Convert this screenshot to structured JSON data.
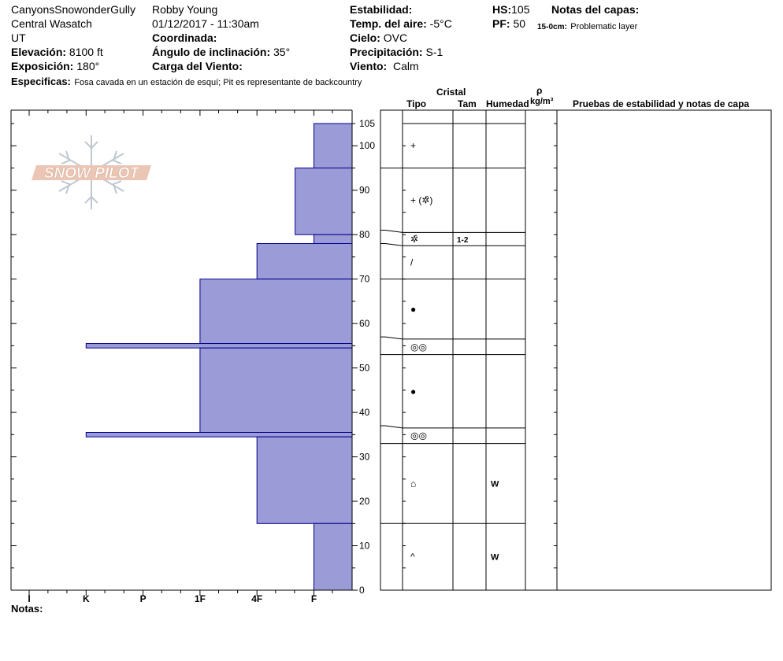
{
  "header": {
    "site": "CanyonsSnowonderGully",
    "range": "Central Wasatch",
    "state": "UT",
    "elevation_label": "Elevación:",
    "elevation_value": "8100 ft",
    "aspect_label": "Exposición:",
    "aspect_value": "180°",
    "specifics_label": "Especificas:",
    "specifics_value": "Fosa cavada en un estación de esquí; Pit es representante de backcountry",
    "observer": "Robby Young",
    "datetime": "01/12/2017 - 11:30am",
    "coord_label": "Coordinada:",
    "slope_label": "Ángulo de inclinación:",
    "slope_value": "35°",
    "wind_load_label": "Carga del Viento:",
    "stability_label": "Estabilidad:",
    "air_temp_label": "Temp. del aire:",
    "air_temp_value": "-5°C",
    "sky_label": "Cielo:",
    "sky_value": "OVC",
    "precip_label": "Precipitación:",
    "precip_value": "S-1",
    "wind_label": "Viento:",
    "wind_value": "Calm",
    "hs_label": "HS:",
    "hs_value": "105",
    "pf_label": "PF:",
    "pf_value": "50",
    "layer_notes_label": "Notas del capas:",
    "layer_note_range": "15-0cm:",
    "layer_note_text": "Problematic layer"
  },
  "logo_text": "SNOW PILOT",
  "table_headers": {
    "cristal": "Cristal",
    "tipo": "Tipo",
    "tam": "Tam",
    "humedad": "Humedad",
    "rho": "ρ",
    "density_unit": "kg/m³",
    "tests": "Pruebas de estabilidad y notas de capa"
  },
  "notes_label": "Notas:",
  "chart_data": {
    "type": "bar",
    "orientation": "horizontal",
    "xlabel": "",
    "ylabel": "",
    "hardness_scale": [
      "I",
      "K",
      "P",
      "1F",
      "4F",
      "F"
    ],
    "hardness_scale_levels": [
      1,
      2,
      3,
      4,
      5,
      6
    ],
    "hardness_origin_level": 6.67,
    "ylim": [
      0,
      105
    ],
    "y_ticks": [
      0,
      10,
      20,
      30,
      40,
      50,
      60,
      70,
      80,
      90,
      100,
      105
    ],
    "y_minor_step": 5,
    "hardness_layers": [
      {
        "top": 105,
        "bottom": 95,
        "hardness": "F",
        "level": 6
      },
      {
        "top": 95,
        "bottom": 80,
        "hardness": "F+",
        "level": 5.67
      },
      {
        "top": 80,
        "bottom": 78,
        "hardness": "F",
        "level": 6
      },
      {
        "top": 78,
        "bottom": 70,
        "hardness": "4F",
        "level": 5
      },
      {
        "top": 70,
        "bottom": 55.5,
        "hardness": "1F",
        "level": 4
      },
      {
        "top": 55.5,
        "bottom": 54.5,
        "hardness": "K",
        "level": 2
      },
      {
        "top": 54.5,
        "bottom": 35.5,
        "hardness": "1F",
        "level": 4
      },
      {
        "top": 35.5,
        "bottom": 34.5,
        "hardness": "K",
        "level": 2
      },
      {
        "top": 34.5,
        "bottom": 15,
        "hardness": "4F",
        "level": 5
      },
      {
        "top": 15,
        "bottom": 0,
        "hardness": "F",
        "level": 6
      }
    ],
    "layer_table": [
      {
        "top": 105,
        "bottom": 95,
        "grain": "+",
        "size": "",
        "moisture": ""
      },
      {
        "top": 95,
        "bottom": 80.5,
        "grain": "+ (✲̂)",
        "size": "",
        "moisture": ""
      },
      {
        "top": 80.5,
        "bottom": 77.5,
        "grain": "✲̂",
        "size": "1-2",
        "moisture": ""
      },
      {
        "top": 77.5,
        "bottom": 70,
        "grain": "/",
        "size": "",
        "moisture": ""
      },
      {
        "top": 70,
        "bottom": 56.5,
        "grain": "●",
        "size": "",
        "moisture": ""
      },
      {
        "top": 56.5,
        "bottom": 53,
        "grain": "◎◎",
        "size": "",
        "moisture": ""
      },
      {
        "top": 53,
        "bottom": 36.5,
        "grain": "●",
        "size": "",
        "moisture": ""
      },
      {
        "top": 36.5,
        "bottom": 33,
        "grain": "◎◎",
        "size": "",
        "moisture": ""
      },
      {
        "top": 33,
        "bottom": 15,
        "grain": "⌂",
        "size": "",
        "moisture": "W"
      },
      {
        "top": 15,
        "bottom": 0,
        "grain": "^",
        "size": "",
        "moisture": "W"
      }
    ],
    "colors": {
      "fill": "#9b9bd7",
      "stroke": "#00008b"
    }
  }
}
